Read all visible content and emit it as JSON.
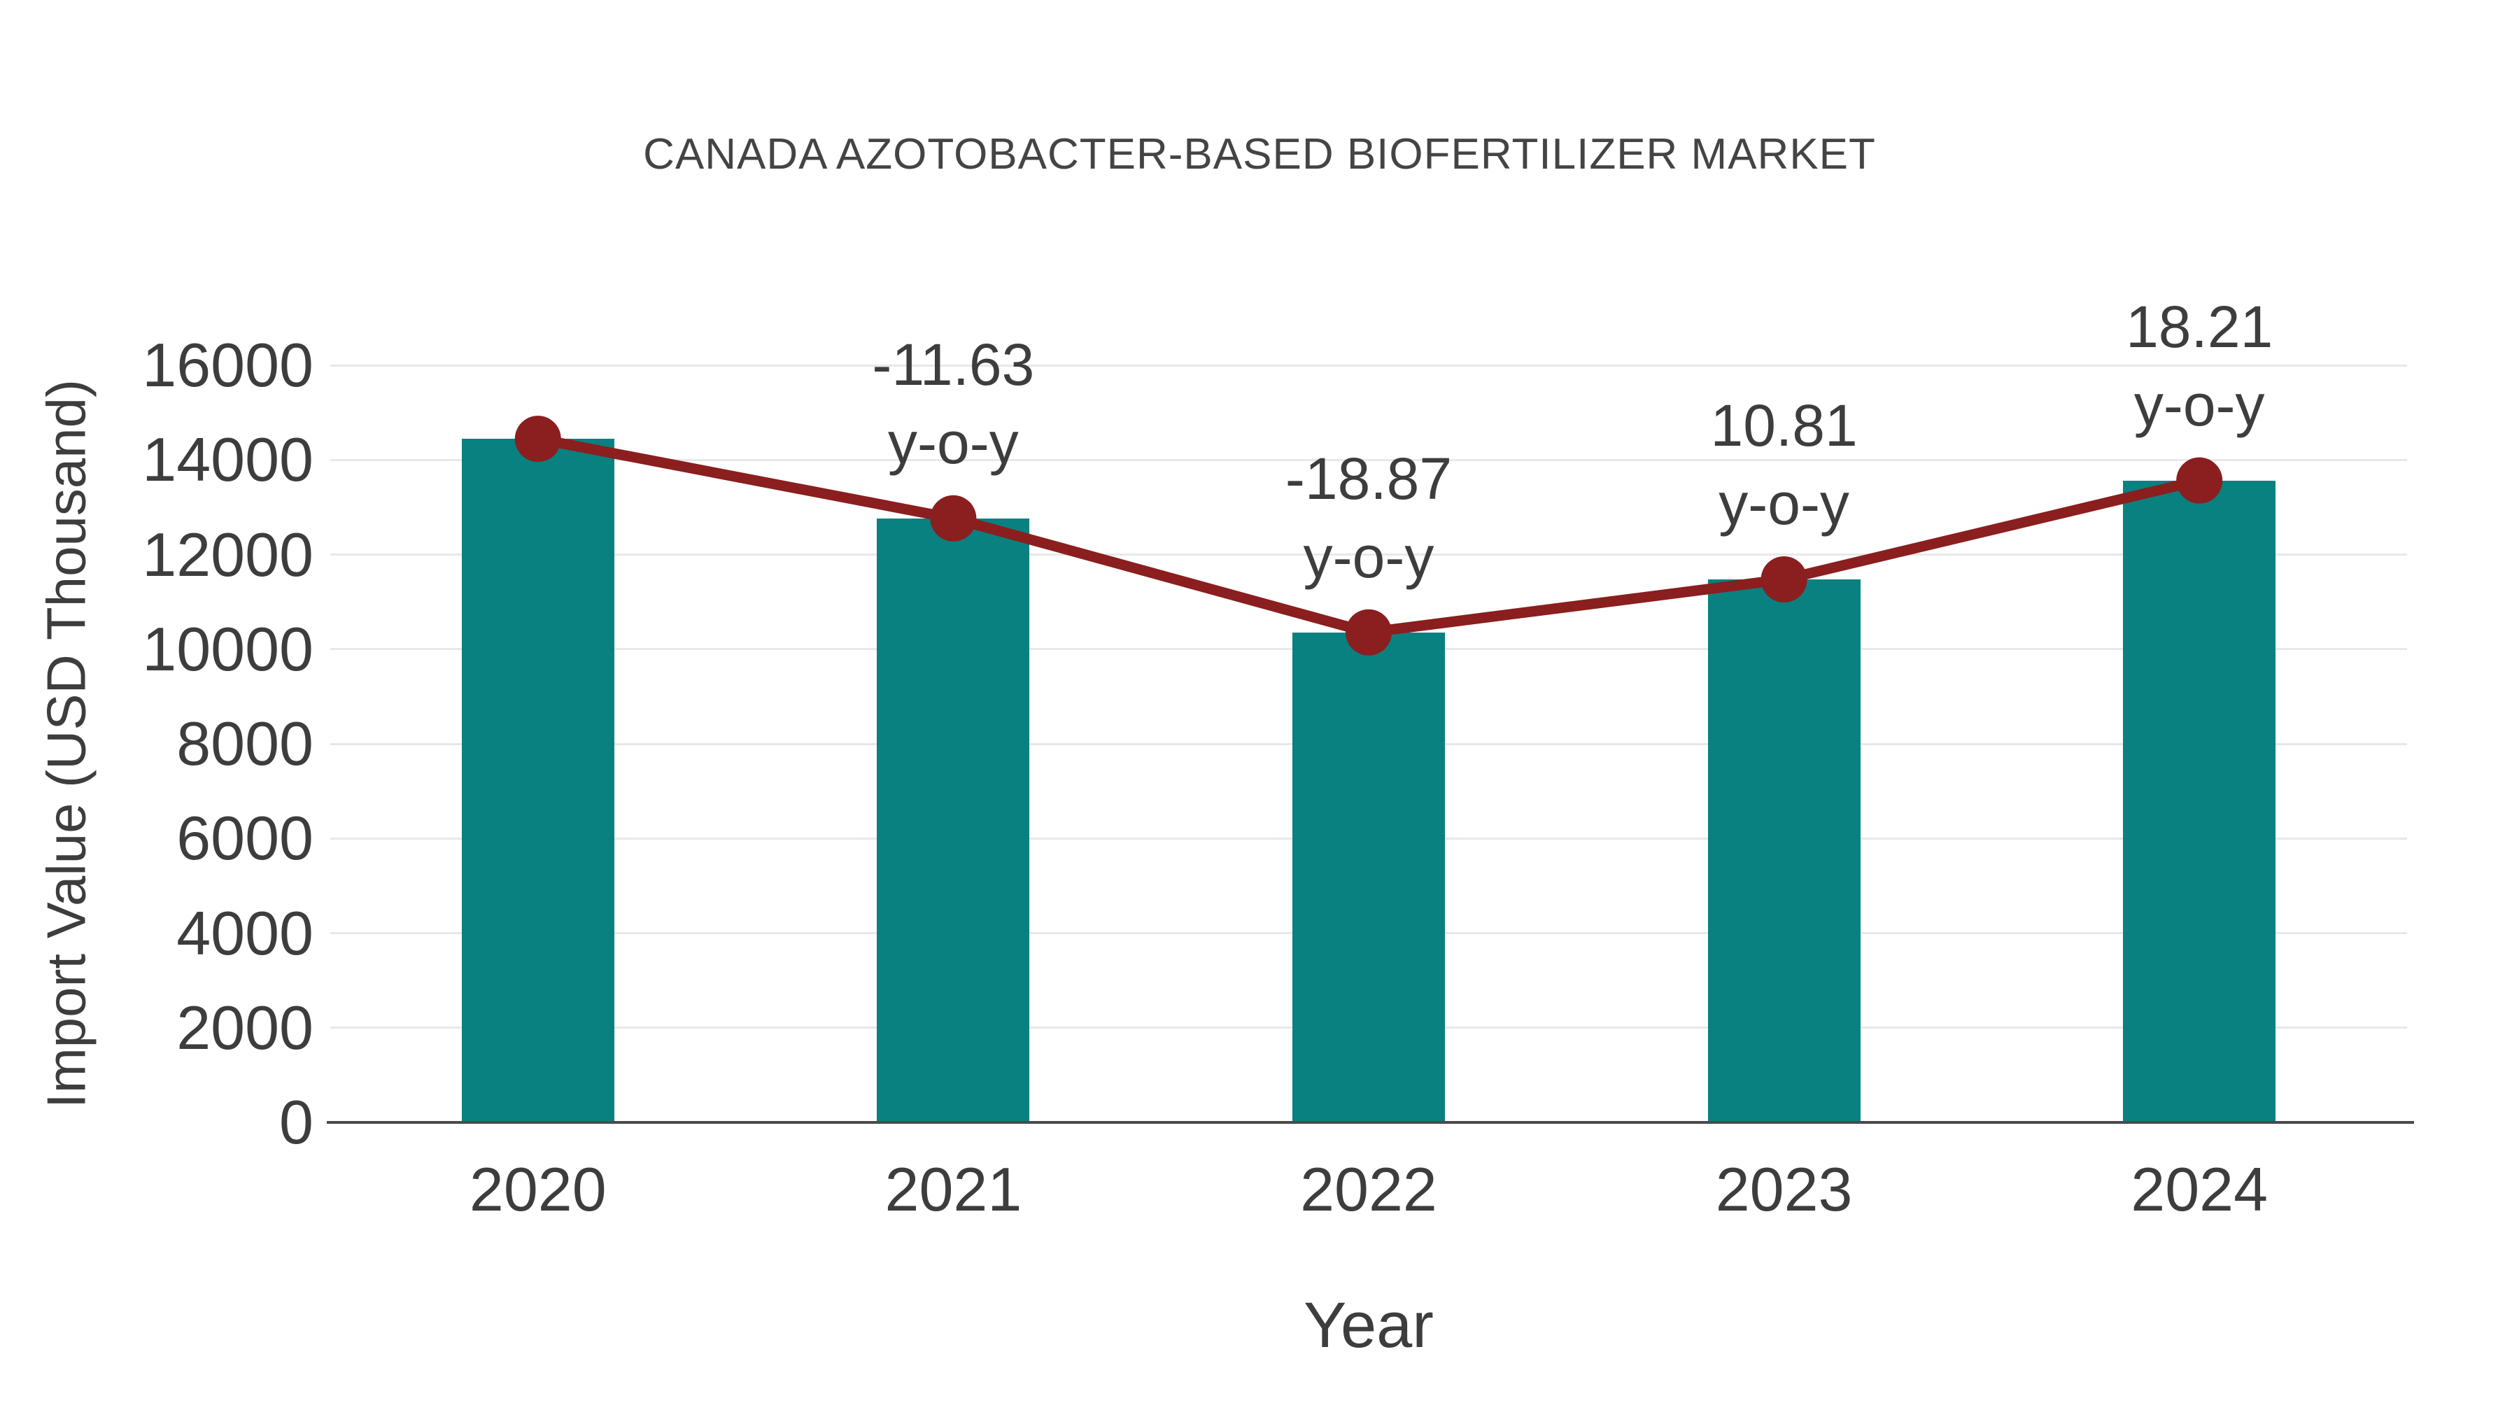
{
  "chart_data": {
    "type": "bar",
    "title": "CANADA AZOTOBACTER-BASED BIOFERTILIZER MARKET",
    "xlabel": "Year",
    "ylabel": "Import Value (USD Thousand)",
    "categories": [
      "2020",
      "2021",
      "2022",
      "2023",
      "2024"
    ],
    "series": [
      {
        "name": "Import Value (USD Thousand)",
        "type": "bar",
        "values": [
          14445,
          12765,
          10355,
          11475,
          13565
        ]
      },
      {
        "name": "y-o-y trend line",
        "type": "line",
        "values": [
          14445,
          12765,
          10355,
          11475,
          13565
        ]
      }
    ],
    "yoy_percent": [
      null,
      -11.63,
      -18.87,
      10.81,
      18.21
    ],
    "yoy_labels": [
      "",
      "-11.63",
      "-18.87",
      "10.81",
      "18.21"
    ],
    "yoy_suffix": "y-o-y",
    "ylim": [
      0,
      16000
    ],
    "ytick_step": 2000,
    "yticks": [
      0,
      2000,
      4000,
      6000,
      8000,
      10000,
      12000,
      14000,
      16000
    ],
    "grid": true,
    "legend_position": "none",
    "colors": {
      "bar": "#0a8181",
      "line": "#8b1e1e",
      "marker": "#8b1e1e",
      "text": "#3d3d3d",
      "title": "#444444",
      "grid": "#e8e8e8",
      "axis": "#4a4a4a",
      "background": "#ffffff"
    }
  }
}
